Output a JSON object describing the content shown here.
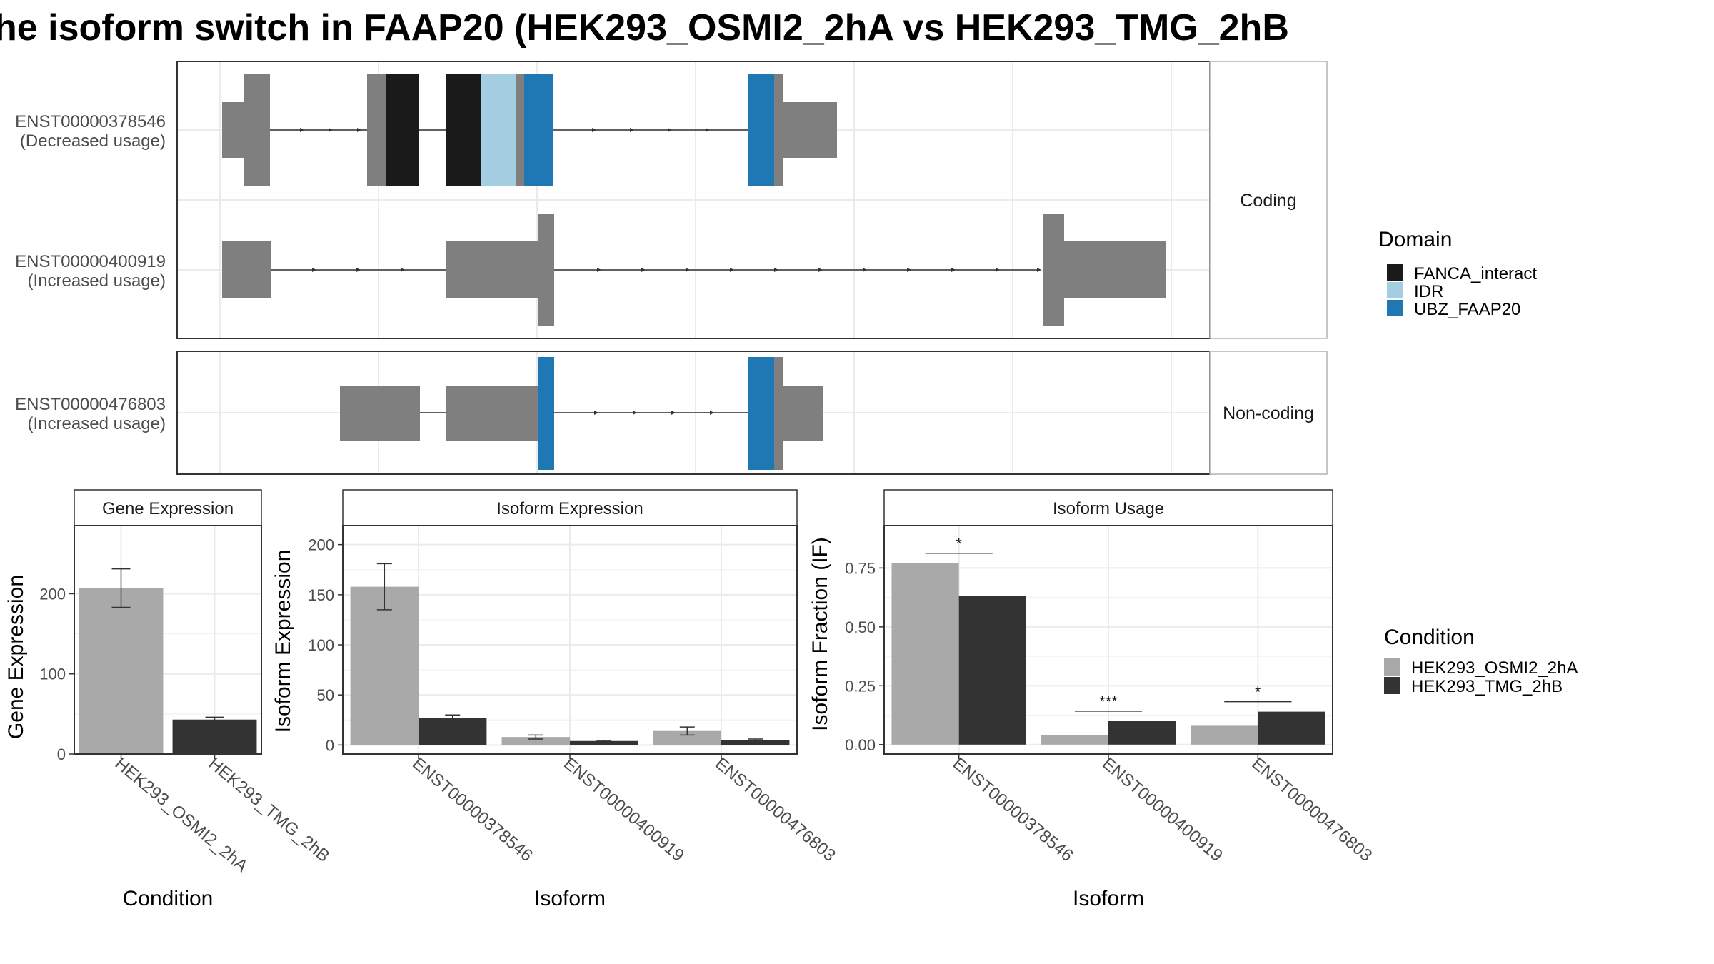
{
  "title": "he isoform switch in FAAP20 (HEK293_OSMI2_2hA vs HEK293_TMG_2hB",
  "colors": {
    "exon": "#7f7f7f",
    "FANCA_interact": "#1a1a1a",
    "IDR": "#a6cee3",
    "UBZ_FAAP20": "#1f78b4",
    "HEK293_OSMI2_2hA": "#a9a9a9",
    "HEK293_TMG_2hB": "#333333",
    "grid": "#ebebeb",
    "strip": "#ffffff"
  },
  "structure": {
    "facets": [
      "Coding",
      "Non-coding"
    ],
    "transcripts": [
      {
        "id": "ENST00000378546",
        "usage": "(Decreased usage)",
        "facet": "Coding"
      },
      {
        "id": "ENST00000400919",
        "usage": "(Increased usage)",
        "facet": "Coding"
      },
      {
        "id": "ENST00000476803",
        "usage": "(Increased usage)",
        "facet": "Non-coding"
      }
    ]
  },
  "domain_legend": {
    "title": "Domain",
    "items": [
      {
        "label": "FANCA_interact",
        "color": "#1a1a1a"
      },
      {
        "label": "IDR",
        "color": "#a6cee3"
      },
      {
        "label": "UBZ_FAAP20",
        "color": "#1f78b4"
      }
    ]
  },
  "condition_legend": {
    "title": "Condition",
    "items": [
      {
        "label": "HEK293_OSMI2_2hA",
        "color": "#a9a9a9"
      },
      {
        "label": "HEK293_TMG_2hB",
        "color": "#333333"
      }
    ]
  },
  "chart_data": [
    {
      "type": "bar",
      "title": "Gene Expression",
      "xlabel": "Condition",
      "ylabel": "Gene Expression",
      "categories": [
        "HEK293_OSMI2_2hA",
        "HEK293_TMG_2hB"
      ],
      "values": [
        207,
        43
      ],
      "errors": [
        [
          183,
          231
        ],
        [
          40,
          46
        ]
      ],
      "yticks": [
        0,
        100,
        200
      ],
      "ylim": [
        0,
        285
      ],
      "grid": true
    },
    {
      "type": "bar",
      "title": "Isoform Expression",
      "xlabel": "Isoform",
      "ylabel": "Isoform Expression",
      "categories": [
        "ENST00000378546",
        "ENST00000400919",
        "ENST00000476803"
      ],
      "series": [
        {
          "name": "HEK293_OSMI2_2hA",
          "values": [
            158,
            8,
            14
          ],
          "errors": [
            [
              135,
              181
            ],
            [
              6,
              10
            ],
            [
              10,
              18
            ]
          ]
        },
        {
          "name": "HEK293_TMG_2hB",
          "values": [
            27,
            4,
            5
          ],
          "errors": [
            [
              24,
              30
            ],
            [
              3,
              4.5
            ],
            [
              4,
              6
            ]
          ]
        }
      ],
      "yticks": [
        0,
        50,
        100,
        150,
        200
      ],
      "ylim": [
        -9,
        219
      ],
      "grid": true
    },
    {
      "type": "bar",
      "title": "Isoform Usage",
      "xlabel": "Isoform",
      "ylabel": "Isoform Fraction (IF)",
      "categories": [
        "ENST00000378546",
        "ENST00000400919",
        "ENST00000476803"
      ],
      "series": [
        {
          "name": "HEK293_OSMI2_2hA",
          "values": [
            0.77,
            0.04,
            0.08
          ]
        },
        {
          "name": "HEK293_TMG_2hB",
          "values": [
            0.63,
            0.1,
            0.14
          ]
        }
      ],
      "significance": [
        "*",
        "***",
        "*"
      ],
      "yticks": [
        "0.00",
        "0.25",
        "0.50",
        "0.75"
      ],
      "ylim": [
        -0.04,
        0.93
      ],
      "grid": true
    }
  ]
}
